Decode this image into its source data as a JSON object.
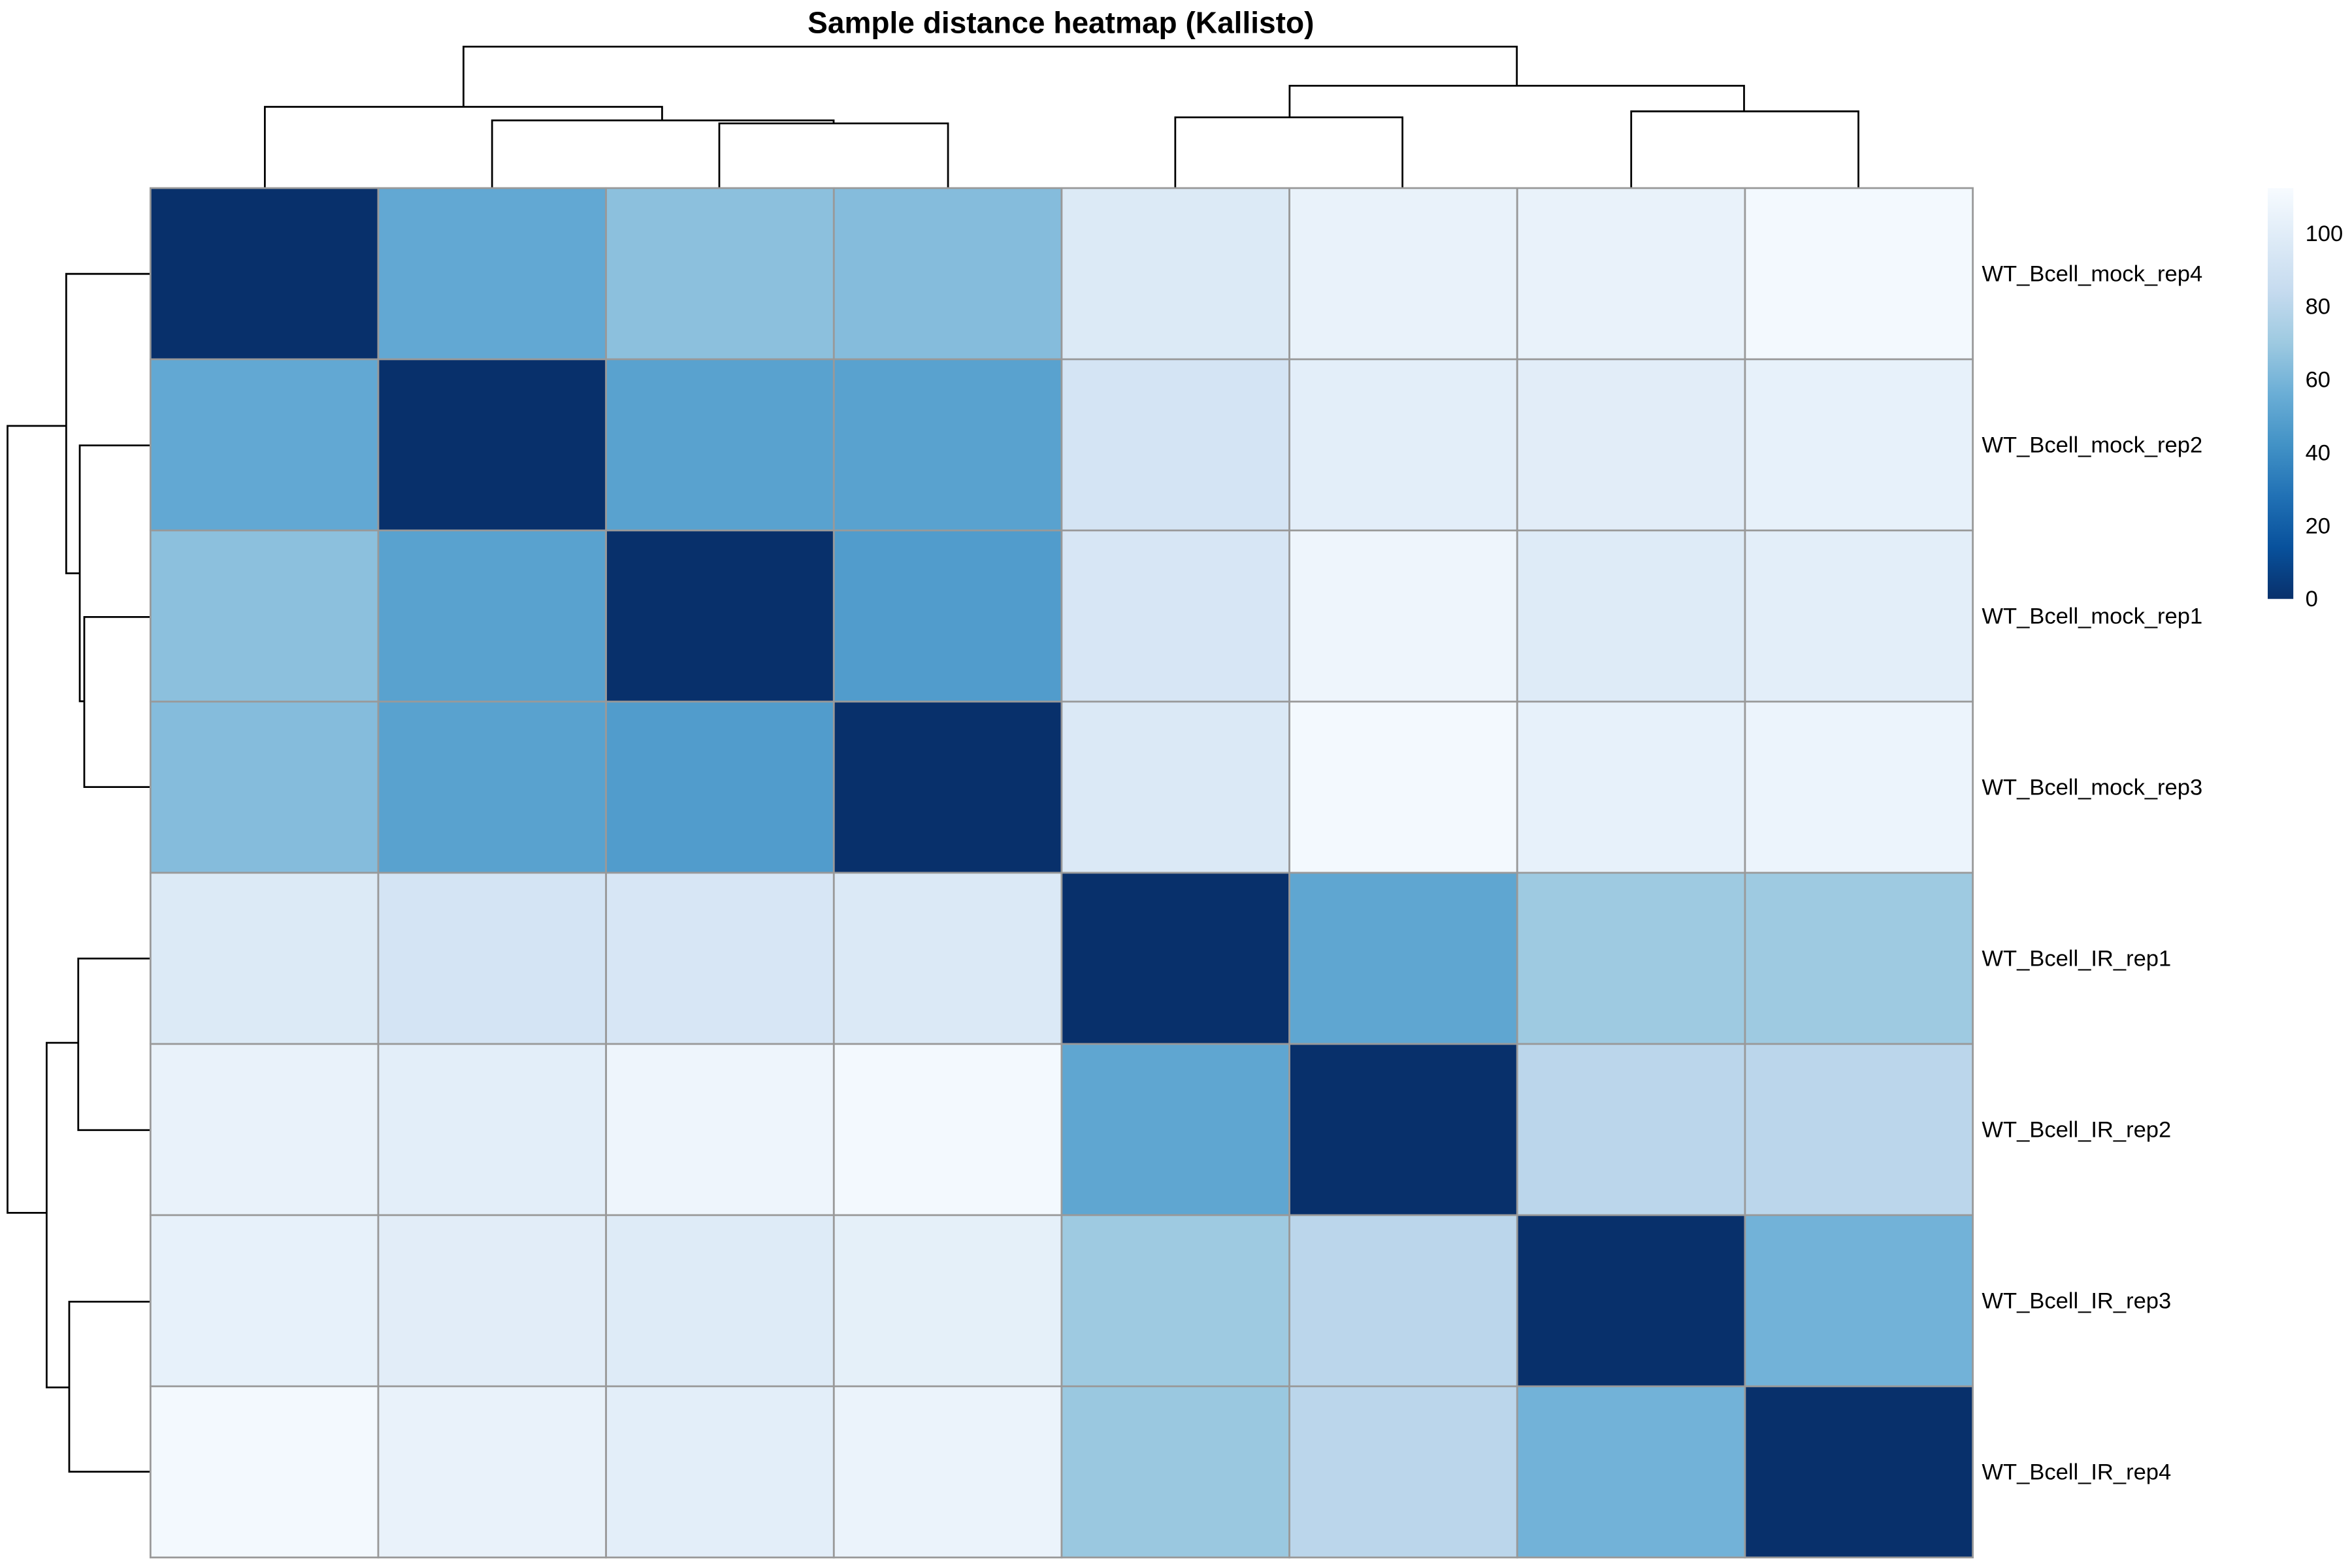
{
  "chart_data": {
    "type": "heatmap",
    "title": "Sample distance heatmap (Kallisto)",
    "row_labels": [
      "WT_Bcell_mock_rep4",
      "WT_Bcell_mock_rep2",
      "WT_Bcell_mock_rep1",
      "WT_Bcell_mock_rep3",
      "WT_Bcell_IR_rep1",
      "WT_Bcell_IR_rep2",
      "WT_Bcell_IR_rep3",
      "WT_Bcell_IR_rep4"
    ],
    "col_labels_shown": false,
    "values": [
      [
        0,
        53,
        65,
        63,
        97,
        104,
        104,
        110
      ],
      [
        53,
        0,
        50,
        50,
        92,
        101,
        100,
        103
      ],
      [
        65,
        50,
        0,
        47,
        94,
        107,
        98,
        101
      ],
      [
        63,
        50,
        47,
        0,
        96,
        110,
        103,
        106
      ],
      [
        97,
        92,
        94,
        96,
        0,
        52,
        70,
        70
      ],
      [
        104,
        101,
        107,
        110,
        52,
        0,
        80,
        80
      ],
      [
        103,
        100,
        98,
        102,
        70,
        80,
        0,
        58
      ],
      [
        110,
        104,
        101,
        105,
        69,
        80,
        58,
        0
      ]
    ],
    "color_scale": {
      "range": [
        0,
        112
      ],
      "palette": [
        "#08306B",
        "#08519C",
        "#2171B5",
        "#4292C6",
        "#6BAED6",
        "#9ECAE1",
        "#C6DBEF",
        "#DEEBF7",
        "#F7FBFF"
      ],
      "ticks": [
        "0",
        "20",
        "40",
        "60",
        "80",
        "100"
      ],
      "tick_values": [
        0,
        20,
        40,
        60,
        80,
        100
      ]
    },
    "row_dendrogram": true,
    "col_dendrogram": true,
    "cell_border_color": "#999999"
  }
}
